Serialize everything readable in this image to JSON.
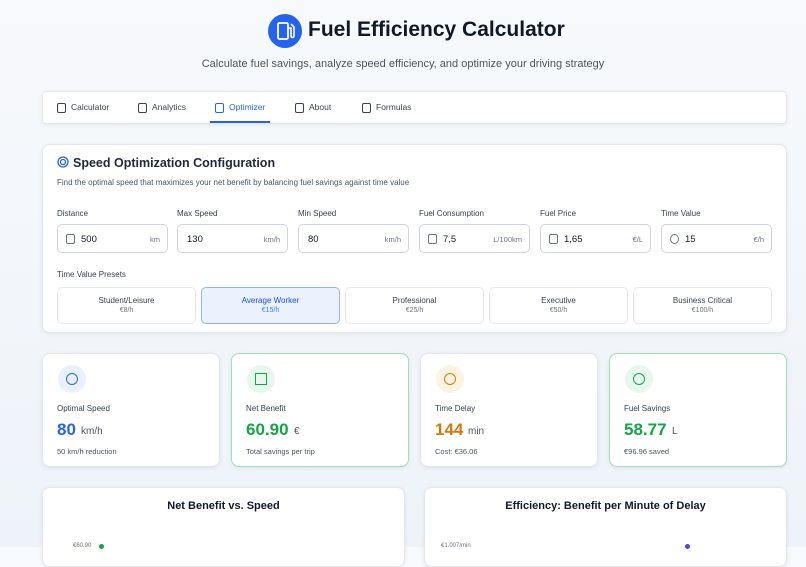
{
  "header": {
    "title": "Fuel Efficiency Calculator",
    "subtitle": "Calculate fuel savings, analyze speed efficiency, and optimize your driving strategy"
  },
  "tabs": {
    "items": [
      "Calculator",
      "Analytics",
      "Optimizer",
      "About",
      "Formulas"
    ],
    "active": 2
  },
  "config": {
    "title": "Speed Optimization Configuration",
    "description": "Find the optimal speed that maximizes your net benefit by balancing fuel savings against time value",
    "fields": [
      {
        "label": "Distance",
        "value": "500",
        "unit": "km"
      },
      {
        "label": "Max Speed",
        "value": "130",
        "unit": "km/h"
      },
      {
        "label": "Min Speed",
        "value": "80",
        "unit": "km/h"
      },
      {
        "label": "Fuel Consumption",
        "value": "7,5",
        "unit": "L/100km"
      },
      {
        "label": "Fuel Price",
        "value": "1,65",
        "unit": "€/L"
      },
      {
        "label": "Time Value",
        "value": "15",
        "unit": "€/h"
      }
    ],
    "presets_label": "Time Value Presets",
    "presets": [
      {
        "name": "Student/Leisure",
        "rate": "€8/h"
      },
      {
        "name": "Average Worker",
        "rate": "€15/h"
      },
      {
        "name": "Professional",
        "rate": "€25/h"
      },
      {
        "name": "Executive",
        "rate": "€50/h"
      },
      {
        "name": "Business Critical",
        "rate": "€100/h"
      }
    ],
    "active_preset": 1
  },
  "stats": [
    {
      "label": "Optimal Speed",
      "value": "80",
      "unit": "km/h",
      "note": "50 km/h reduction",
      "color": "#2563eb"
    },
    {
      "label": "Net Benefit",
      "value": "60.90",
      "unit": "€",
      "note": "Total savings per trip",
      "color": "#16a34a"
    },
    {
      "label": "Time Delay",
      "value": "144",
      "unit": "min",
      "note": "Cost: €36.06",
      "color": "#d97706"
    },
    {
      "label": "Fuel Savings",
      "value": "58.77",
      "unit": "L",
      "note": "€96.96 saved",
      "color": "#16a34a"
    }
  ],
  "charts": [
    {
      "title": "Net Benefit vs. Speed",
      "top_tick": "€60.90"
    },
    {
      "title": "Efficiency: Benefit per Minute of Delay",
      "top_tick": "€1.007/min"
    }
  ]
}
